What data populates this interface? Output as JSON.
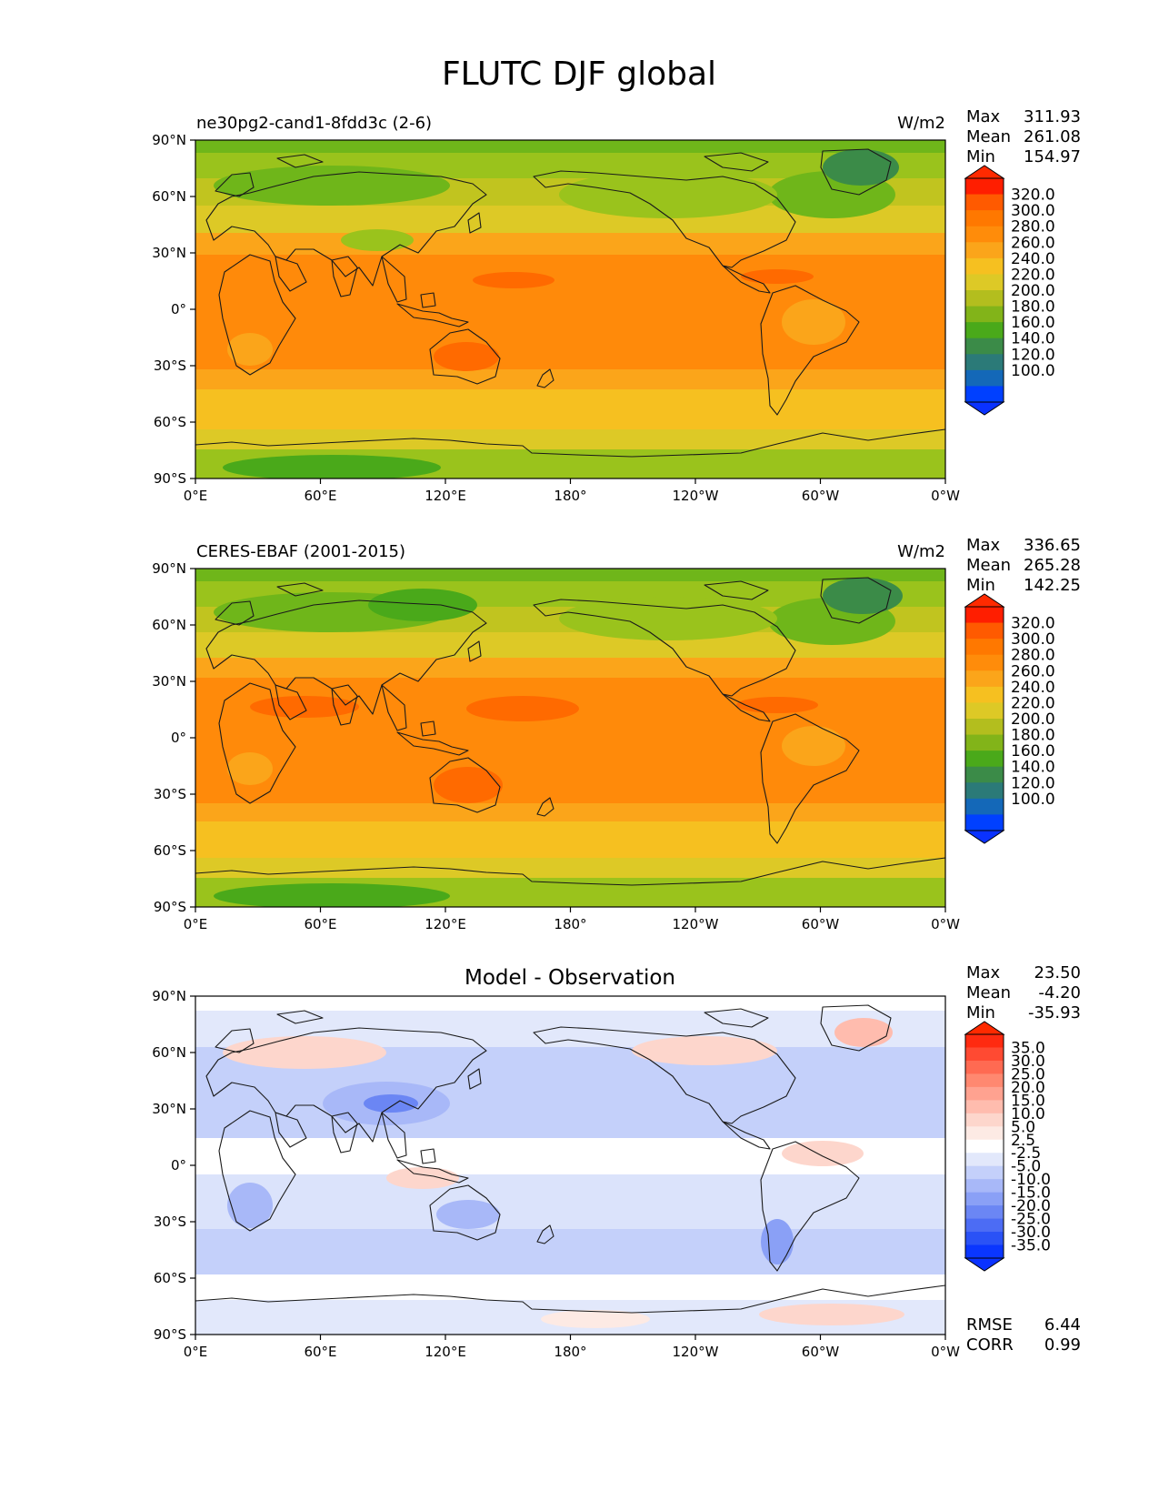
{
  "title": "FLUTC DJF global",
  "x_ticks": [
    "0°E",
    "60°E",
    "120°E",
    "180°",
    "120°W",
    "60°W",
    "0°W"
  ],
  "y_ticks": [
    "90°N",
    "60°N",
    "30°N",
    "0°",
    "30°S",
    "60°S",
    "90°S"
  ],
  "panels": [
    {
      "left_title": "ne30pg2-cand1-8fdd3c (2-6)",
      "right_title": "W/m2",
      "center_title": "",
      "stats": [
        {
          "label": "Max",
          "value": "311.93"
        },
        {
          "label": "Mean",
          "value": "261.08"
        },
        {
          "label": "Min",
          "value": "154.97"
        }
      ],
      "colorbar": {
        "labels": [
          "320.0",
          "300.0",
          "280.0",
          "260.0",
          "240.0",
          "220.0",
          "200.0",
          "180.0",
          "160.0",
          "140.0",
          "120.0",
          "100.0"
        ],
        "colors": [
          "#ff1e00",
          "#ff5a00",
          "#ff7800",
          "#ff8c0a",
          "#fba51a",
          "#f6c020",
          "#ddc926",
          "#b3be1e",
          "#82b419",
          "#4aa91a",
          "#3b8b48",
          "#2b7a78",
          "#1468b8",
          "#0040ff"
        ],
        "extend_top": "#ff2a00",
        "extend_bottom": "#0a32ff"
      },
      "extra_stats": []
    },
    {
      "left_title": "CERES-EBAF (2001-2015)",
      "right_title": "W/m2",
      "center_title": "",
      "stats": [
        {
          "label": "Max",
          "value": "336.65"
        },
        {
          "label": "Mean",
          "value": "265.28"
        },
        {
          "label": "Min",
          "value": "142.25"
        }
      ],
      "colorbar": {
        "labels": [
          "320.0",
          "300.0",
          "280.0",
          "260.0",
          "240.0",
          "220.0",
          "200.0",
          "180.0",
          "160.0",
          "140.0",
          "120.0",
          "100.0"
        ],
        "colors": [
          "#ff1e00",
          "#ff5a00",
          "#ff7800",
          "#ff8c0a",
          "#fba51a",
          "#f6c020",
          "#ddc926",
          "#b3be1e",
          "#82b419",
          "#4aa91a",
          "#3b8b48",
          "#2b7a78",
          "#1468b8",
          "#0040ff"
        ],
        "extend_top": "#ff2a00",
        "extend_bottom": "#0a32ff"
      },
      "extra_stats": []
    },
    {
      "left_title": "",
      "right_title": "",
      "center_title": "Model - Observation",
      "stats": [
        {
          "label": "Max",
          "value": "23.50"
        },
        {
          "label": "Mean",
          "value": "-4.20"
        },
        {
          "label": "Min",
          "value": "-35.93"
        }
      ],
      "colorbar": {
        "labels": [
          "35.0",
          "30.0",
          "25.0",
          "20.0",
          "15.0",
          "10.0",
          "5.0",
          "2.5",
          "-2.5",
          "-5.0",
          "-10.0",
          "-15.0",
          "-20.0",
          "-25.0",
          "-30.0",
          "-35.0"
        ],
        "colors": [
          "#ff2a10",
          "#ff4a32",
          "#ff6a52",
          "#ff8870",
          "#ffa290",
          "#ffbcae",
          "#fdd6cc",
          "#fdeae4",
          "#ffffff",
          "#e2e8fb",
          "#c4d0fa",
          "#a8b8f8",
          "#8aa0f6",
          "#6b86f4",
          "#4c6cf4",
          "#2a52f6",
          "#0a36ff"
        ],
        "extend_top": "#ff2a00",
        "extend_bottom": "#0a32ff"
      },
      "extra_stats": [
        {
          "label": "RMSE",
          "value": "6.44"
        },
        {
          "label": "CORR",
          "value": "0.99"
        }
      ]
    }
  ],
  "chart_data": [
    {
      "type": "heatmap",
      "variable": "FLUTC",
      "season": "DJF",
      "region": "global",
      "title": "ne30pg2-cand1-8fdd3c (2-6)",
      "units": "W/m2",
      "x_range_deg_east": [
        0,
        360
      ],
      "y_range_deg_lat": [
        -90,
        90
      ],
      "max": 311.93,
      "mean": 261.08,
      "min": 154.97,
      "contour_levels": [
        100,
        120,
        140,
        160,
        180,
        200,
        220,
        240,
        260,
        280,
        300,
        320
      ],
      "zonal_mean_profile_lat": [
        85,
        75,
        65,
        55,
        45,
        35,
        25,
        15,
        5,
        -5,
        -15,
        -25,
        -35,
        -45,
        -55,
        -65,
        -75,
        -85
      ],
      "zonal_mean_profile_value": [
        180,
        195,
        205,
        215,
        230,
        255,
        275,
        282,
        288,
        290,
        288,
        282,
        270,
        255,
        240,
        225,
        200,
        185
      ]
    },
    {
      "type": "heatmap",
      "variable": "FLUTC",
      "season": "DJF",
      "region": "global",
      "title": "CERES-EBAF (2001-2015)",
      "units": "W/m2",
      "x_range_deg_east": [
        0,
        360
      ],
      "y_range_deg_lat": [
        -90,
        90
      ],
      "max": 336.65,
      "mean": 265.28,
      "min": 142.25,
      "contour_levels": [
        100,
        120,
        140,
        160,
        180,
        200,
        220,
        240,
        260,
        280,
        300,
        320
      ],
      "zonal_mean_profile_lat": [
        85,
        75,
        65,
        55,
        45,
        35,
        25,
        15,
        5,
        -5,
        -15,
        -25,
        -35,
        -45,
        -55,
        -65,
        -75,
        -85
      ],
      "zonal_mean_profile_value": [
        178,
        192,
        205,
        218,
        235,
        262,
        282,
        290,
        292,
        294,
        292,
        286,
        274,
        258,
        244,
        228,
        205,
        190
      ]
    },
    {
      "type": "heatmap",
      "title": "Model - Observation",
      "x_range_deg_east": [
        0,
        360
      ],
      "y_range_deg_lat": [
        -90,
        90
      ],
      "max": 23.5,
      "mean": -4.2,
      "min": -35.93,
      "rmse": 6.44,
      "corr": 0.99,
      "contour_levels": [
        -35,
        -30,
        -25,
        -20,
        -15,
        -10,
        -5,
        -2.5,
        2.5,
        5,
        10,
        15,
        20,
        25,
        30,
        35
      ]
    }
  ]
}
